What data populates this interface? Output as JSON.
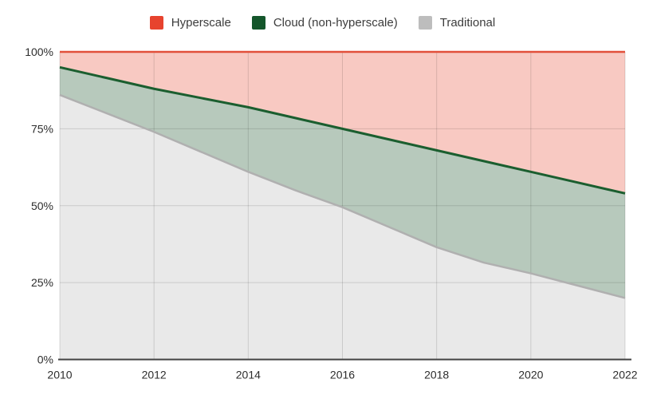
{
  "page": {
    "background": "#ffffff"
  },
  "legend": {
    "position": "top-center",
    "items": [
      {
        "label": "Hyperscale",
        "color": "#e7432e"
      },
      {
        "label": "Cloud (non-hyperscale)",
        "color": "#14562b"
      },
      {
        "label": "Traditional",
        "color": "#bdbdbd"
      }
    ]
  },
  "chart_data": {
    "type": "area",
    "stacked": true,
    "stack_total": 100,
    "title": "",
    "xlabel": "",
    "ylabel": "",
    "x": [
      2010,
      2011,
      2012,
      2013,
      2014,
      2015,
      2016,
      2017,
      2018,
      2019,
      2020,
      2021,
      2022
    ],
    "series": [
      {
        "name": "Traditional",
        "values": [
          86,
          80,
          74,
          67.5,
          61,
          55,
          49.5,
          43,
          36.5,
          31.5,
          28,
          24,
          20
        ],
        "fill": "#e9e9e9",
        "line_color": "#b0b0b0",
        "line_width": 2.5
      },
      {
        "name": "Cloud (non-hyperscale)",
        "values": [
          9,
          11.5,
          14,
          17.5,
          21,
          23.5,
          25.5,
          28.5,
          31.5,
          33,
          33,
          33.5,
          34
        ],
        "fill": "#b7c9bc",
        "line_color": "#1b5e2f",
        "line_width": 3
      },
      {
        "name": "Hyperscale",
        "values": [
          5,
          8.5,
          12,
          15,
          18,
          21.5,
          25,
          28.5,
          32,
          35.5,
          39,
          42.5,
          46
        ],
        "fill": "#f8c9c2",
        "line_color": "#e2503b",
        "line_width": 2.5
      }
    ],
    "x_ticks": [
      "2010",
      "2012",
      "2014",
      "2016",
      "2018",
      "2020",
      "2022"
    ],
    "x_tick_years": [
      2010,
      2012,
      2014,
      2016,
      2018,
      2020,
      2022
    ],
    "y_ticks": [
      "0%",
      "25%",
      "50%",
      "75%",
      "100%"
    ],
    "y_tick_values": [
      0,
      25,
      50,
      75,
      100
    ],
    "xlim": [
      2010,
      2022
    ],
    "ylim": [
      0,
      100
    ],
    "grid": true,
    "legend_position": "top"
  }
}
